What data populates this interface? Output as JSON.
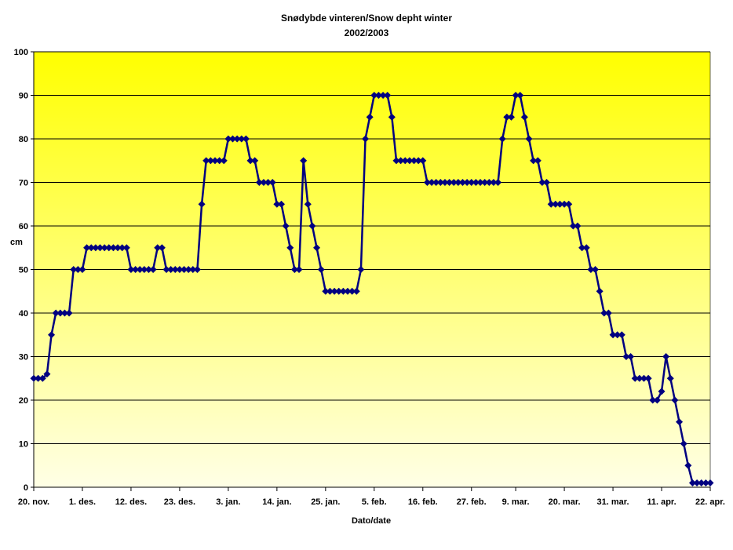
{
  "chart_data": {
    "type": "line",
    "title": "Snødybde vinteren/Snow depht winter",
    "subtitle": "2002/2003",
    "xlabel": "Dato/date",
    "ylabel": "cm",
    "ylim": [
      0,
      100
    ],
    "yticks": [
      0,
      10,
      20,
      30,
      40,
      50,
      60,
      70,
      80,
      90,
      100
    ],
    "xlim": [
      "2002-11-20",
      "2003-04-22"
    ],
    "xticks": [
      {
        "date": "2002-11-20",
        "label": "20. nov."
      },
      {
        "date": "2002-12-01",
        "label": "1. des."
      },
      {
        "date": "2002-12-12",
        "label": "12. des."
      },
      {
        "date": "2002-12-23",
        "label": "23. des."
      },
      {
        "date": "2003-01-03",
        "label": "3. jan."
      },
      {
        "date": "2003-01-14",
        "label": "14. jan."
      },
      {
        "date": "2003-01-25",
        "label": "25. jan."
      },
      {
        "date": "2003-02-05",
        "label": "5. feb."
      },
      {
        "date": "2003-02-16",
        "label": "16. feb."
      },
      {
        "date": "2003-02-27",
        "label": "27. feb."
      },
      {
        "date": "2003-03-09",
        "label": "9. mar."
      },
      {
        "date": "2003-03-20",
        "label": "20. mar."
      },
      {
        "date": "2003-03-31",
        "label": "31. mar."
      },
      {
        "date": "2003-04-11",
        "label": "11. apr."
      },
      {
        "date": "2003-04-22",
        "label": "22. apr."
      }
    ],
    "grid": true,
    "colors": {
      "line": "#000080",
      "background_top": "#ffff00",
      "background_bottom": "#ffffe6"
    },
    "series": [
      {
        "points": [
          {
            "x": "2002-11-20",
            "y": 25
          },
          {
            "x": "2002-11-21",
            "y": 25
          },
          {
            "x": "2002-11-22",
            "y": 25
          },
          {
            "x": "2002-11-23",
            "y": 26
          },
          {
            "x": "2002-11-24",
            "y": 35
          },
          {
            "x": "2002-11-25",
            "y": 40
          },
          {
            "x": "2002-11-26",
            "y": 40
          },
          {
            "x": "2002-11-27",
            "y": 40
          },
          {
            "x": "2002-11-28",
            "y": 40
          },
          {
            "x": "2002-11-29",
            "y": 50
          },
          {
            "x": "2002-11-30",
            "y": 50
          },
          {
            "x": "2002-12-01",
            "y": 50
          },
          {
            "x": "2002-12-02",
            "y": 55
          },
          {
            "x": "2002-12-03",
            "y": 55
          },
          {
            "x": "2002-12-04",
            "y": 55
          },
          {
            "x": "2002-12-05",
            "y": 55
          },
          {
            "x": "2002-12-06",
            "y": 55
          },
          {
            "x": "2002-12-07",
            "y": 55
          },
          {
            "x": "2002-12-08",
            "y": 55
          },
          {
            "x": "2002-12-09",
            "y": 55
          },
          {
            "x": "2002-12-10",
            "y": 55
          },
          {
            "x": "2002-12-11",
            "y": 55
          },
          {
            "x": "2002-12-12",
            "y": 50
          },
          {
            "x": "2002-12-13",
            "y": 50
          },
          {
            "x": "2002-12-14",
            "y": 50
          },
          {
            "x": "2002-12-15",
            "y": 50
          },
          {
            "x": "2002-12-16",
            "y": 50
          },
          {
            "x": "2002-12-17",
            "y": 50
          },
          {
            "x": "2002-12-18",
            "y": 55
          },
          {
            "x": "2002-12-19",
            "y": 55
          },
          {
            "x": "2002-12-20",
            "y": 50
          },
          {
            "x": "2002-12-21",
            "y": 50
          },
          {
            "x": "2002-12-22",
            "y": 50
          },
          {
            "x": "2002-12-23",
            "y": 50
          },
          {
            "x": "2002-12-24",
            "y": 50
          },
          {
            "x": "2002-12-25",
            "y": 50
          },
          {
            "x": "2002-12-26",
            "y": 50
          },
          {
            "x": "2002-12-27",
            "y": 50
          },
          {
            "x": "2002-12-28",
            "y": 65
          },
          {
            "x": "2002-12-29",
            "y": 75
          },
          {
            "x": "2002-12-30",
            "y": 75
          },
          {
            "x": "2002-12-31",
            "y": 75
          },
          {
            "x": "2003-01-01",
            "y": 75
          },
          {
            "x": "2003-01-02",
            "y": 75
          },
          {
            "x": "2003-01-03",
            "y": 80
          },
          {
            "x": "2003-01-04",
            "y": 80
          },
          {
            "x": "2003-01-05",
            "y": 80
          },
          {
            "x": "2003-01-06",
            "y": 80
          },
          {
            "x": "2003-01-07",
            "y": 80
          },
          {
            "x": "2003-01-08",
            "y": 75
          },
          {
            "x": "2003-01-09",
            "y": 75
          },
          {
            "x": "2003-01-10",
            "y": 70
          },
          {
            "x": "2003-01-11",
            "y": 70
          },
          {
            "x": "2003-01-12",
            "y": 70
          },
          {
            "x": "2003-01-13",
            "y": 70
          },
          {
            "x": "2003-01-14",
            "y": 65
          },
          {
            "x": "2003-01-15",
            "y": 65
          },
          {
            "x": "2003-01-16",
            "y": 60
          },
          {
            "x": "2003-01-17",
            "y": 55
          },
          {
            "x": "2003-01-18",
            "y": 50
          },
          {
            "x": "2003-01-19",
            "y": 50
          },
          {
            "x": "2003-01-20",
            "y": 75
          },
          {
            "x": "2003-01-21",
            "y": 65
          },
          {
            "x": "2003-01-22",
            "y": 60
          },
          {
            "x": "2003-01-23",
            "y": 55
          },
          {
            "x": "2003-01-24",
            "y": 50
          },
          {
            "x": "2003-01-25",
            "y": 45
          },
          {
            "x": "2003-01-26",
            "y": 45
          },
          {
            "x": "2003-01-27",
            "y": 45
          },
          {
            "x": "2003-01-28",
            "y": 45
          },
          {
            "x": "2003-01-29",
            "y": 45
          },
          {
            "x": "2003-01-30",
            "y": 45
          },
          {
            "x": "2003-01-31",
            "y": 45
          },
          {
            "x": "2003-02-01",
            "y": 45
          },
          {
            "x": "2003-02-02",
            "y": 50
          },
          {
            "x": "2003-02-03",
            "y": 80
          },
          {
            "x": "2003-02-04",
            "y": 85
          },
          {
            "x": "2003-02-05",
            "y": 90
          },
          {
            "x": "2003-02-06",
            "y": 90
          },
          {
            "x": "2003-02-07",
            "y": 90
          },
          {
            "x": "2003-02-08",
            "y": 90
          },
          {
            "x": "2003-02-09",
            "y": 85
          },
          {
            "x": "2003-02-10",
            "y": 75
          },
          {
            "x": "2003-02-11",
            "y": 75
          },
          {
            "x": "2003-02-12",
            "y": 75
          },
          {
            "x": "2003-02-13",
            "y": 75
          },
          {
            "x": "2003-02-14",
            "y": 75
          },
          {
            "x": "2003-02-15",
            "y": 75
          },
          {
            "x": "2003-02-16",
            "y": 75
          },
          {
            "x": "2003-02-17",
            "y": 70
          },
          {
            "x": "2003-02-18",
            "y": 70
          },
          {
            "x": "2003-02-19",
            "y": 70
          },
          {
            "x": "2003-02-20",
            "y": 70
          },
          {
            "x": "2003-02-21",
            "y": 70
          },
          {
            "x": "2003-02-22",
            "y": 70
          },
          {
            "x": "2003-02-23",
            "y": 70
          },
          {
            "x": "2003-02-24",
            "y": 70
          },
          {
            "x": "2003-02-25",
            "y": 70
          },
          {
            "x": "2003-02-26",
            "y": 70
          },
          {
            "x": "2003-02-27",
            "y": 70
          },
          {
            "x": "2003-02-28",
            "y": 70
          },
          {
            "x": "2003-03-01",
            "y": 70
          },
          {
            "x": "2003-03-02",
            "y": 70
          },
          {
            "x": "2003-03-03",
            "y": 70
          },
          {
            "x": "2003-03-04",
            "y": 70
          },
          {
            "x": "2003-03-05",
            "y": 70
          },
          {
            "x": "2003-03-06",
            "y": 80
          },
          {
            "x": "2003-03-07",
            "y": 85
          },
          {
            "x": "2003-03-08",
            "y": 85
          },
          {
            "x": "2003-03-09",
            "y": 90
          },
          {
            "x": "2003-03-10",
            "y": 90
          },
          {
            "x": "2003-03-11",
            "y": 85
          },
          {
            "x": "2003-03-12",
            "y": 80
          },
          {
            "x": "2003-03-13",
            "y": 75
          },
          {
            "x": "2003-03-14",
            "y": 75
          },
          {
            "x": "2003-03-15",
            "y": 70
          },
          {
            "x": "2003-03-16",
            "y": 70
          },
          {
            "x": "2003-03-17",
            "y": 65
          },
          {
            "x": "2003-03-18",
            "y": 65
          },
          {
            "x": "2003-03-19",
            "y": 65
          },
          {
            "x": "2003-03-20",
            "y": 65
          },
          {
            "x": "2003-03-21",
            "y": 65
          },
          {
            "x": "2003-03-22",
            "y": 60
          },
          {
            "x": "2003-03-23",
            "y": 60
          },
          {
            "x": "2003-03-24",
            "y": 55
          },
          {
            "x": "2003-03-25",
            "y": 55
          },
          {
            "x": "2003-03-26",
            "y": 50
          },
          {
            "x": "2003-03-27",
            "y": 50
          },
          {
            "x": "2003-03-28",
            "y": 45
          },
          {
            "x": "2003-03-29",
            "y": 40
          },
          {
            "x": "2003-03-30",
            "y": 40
          },
          {
            "x": "2003-03-31",
            "y": 35
          },
          {
            "x": "2003-04-01",
            "y": 35
          },
          {
            "x": "2003-04-02",
            "y": 35
          },
          {
            "x": "2003-04-03",
            "y": 30
          },
          {
            "x": "2003-04-04",
            "y": 30
          },
          {
            "x": "2003-04-05",
            "y": 25
          },
          {
            "x": "2003-04-06",
            "y": 25
          },
          {
            "x": "2003-04-07",
            "y": 25
          },
          {
            "x": "2003-04-08",
            "y": 25
          },
          {
            "x": "2003-04-09",
            "y": 20
          },
          {
            "x": "2003-04-10",
            "y": 20
          },
          {
            "x": "2003-04-11",
            "y": 22
          },
          {
            "x": "2003-04-12",
            "y": 30
          },
          {
            "x": "2003-04-13",
            "y": 25
          },
          {
            "x": "2003-04-14",
            "y": 20
          },
          {
            "x": "2003-04-15",
            "y": 15
          },
          {
            "x": "2003-04-16",
            "y": 10
          },
          {
            "x": "2003-04-17",
            "y": 5
          },
          {
            "x": "2003-04-18",
            "y": 1
          },
          {
            "x": "2003-04-19",
            "y": 1
          },
          {
            "x": "2003-04-20",
            "y": 1
          },
          {
            "x": "2003-04-21",
            "y": 1
          },
          {
            "x": "2003-04-22",
            "y": 1
          }
        ]
      }
    ]
  }
}
